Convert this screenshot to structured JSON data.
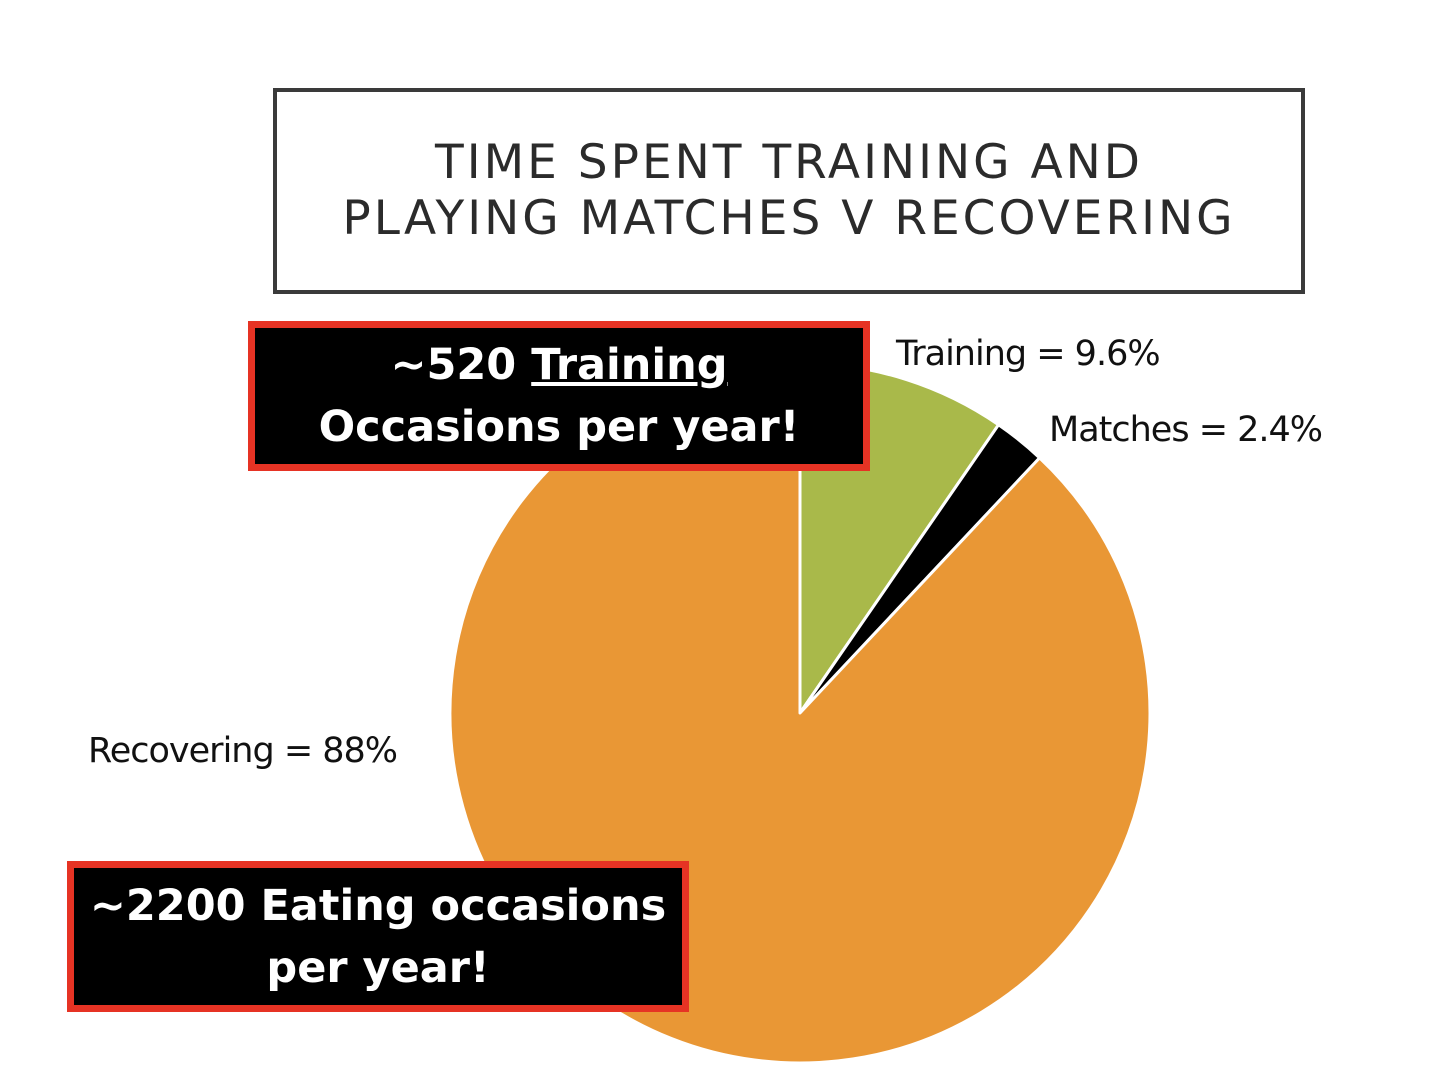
{
  "title": {
    "line1": "TIME SPENT TRAINING AND",
    "line2": "PLAYING MATCHES V RECOVERING"
  },
  "colors": {
    "training": "#a9b94a",
    "matches": "#000000",
    "recovering": "#e99735",
    "callout_border": "#e63324"
  },
  "callouts": {
    "training": {
      "prefix": "~520",
      "underlined": "Training",
      "line2": "Occasions per year!"
    },
    "eating": {
      "line1": "~2200 Eating occasions",
      "line2": "per year!"
    }
  },
  "chart_data": {
    "type": "pie",
    "title": "TIME SPENT TRAINING AND PLAYING MATCHES V RECOVERING",
    "slices": [
      {
        "name": "Training",
        "value": 9.6,
        "label": "Training = 9.6%",
        "color": "#a9b94a"
      },
      {
        "name": "Matches",
        "value": 2.4,
        "label": "Matches = 2.4%",
        "color": "#000000"
      },
      {
        "name": "Recovering",
        "value": 88,
        "label": "Recovering = 88%",
        "color": "#e99735"
      }
    ]
  }
}
